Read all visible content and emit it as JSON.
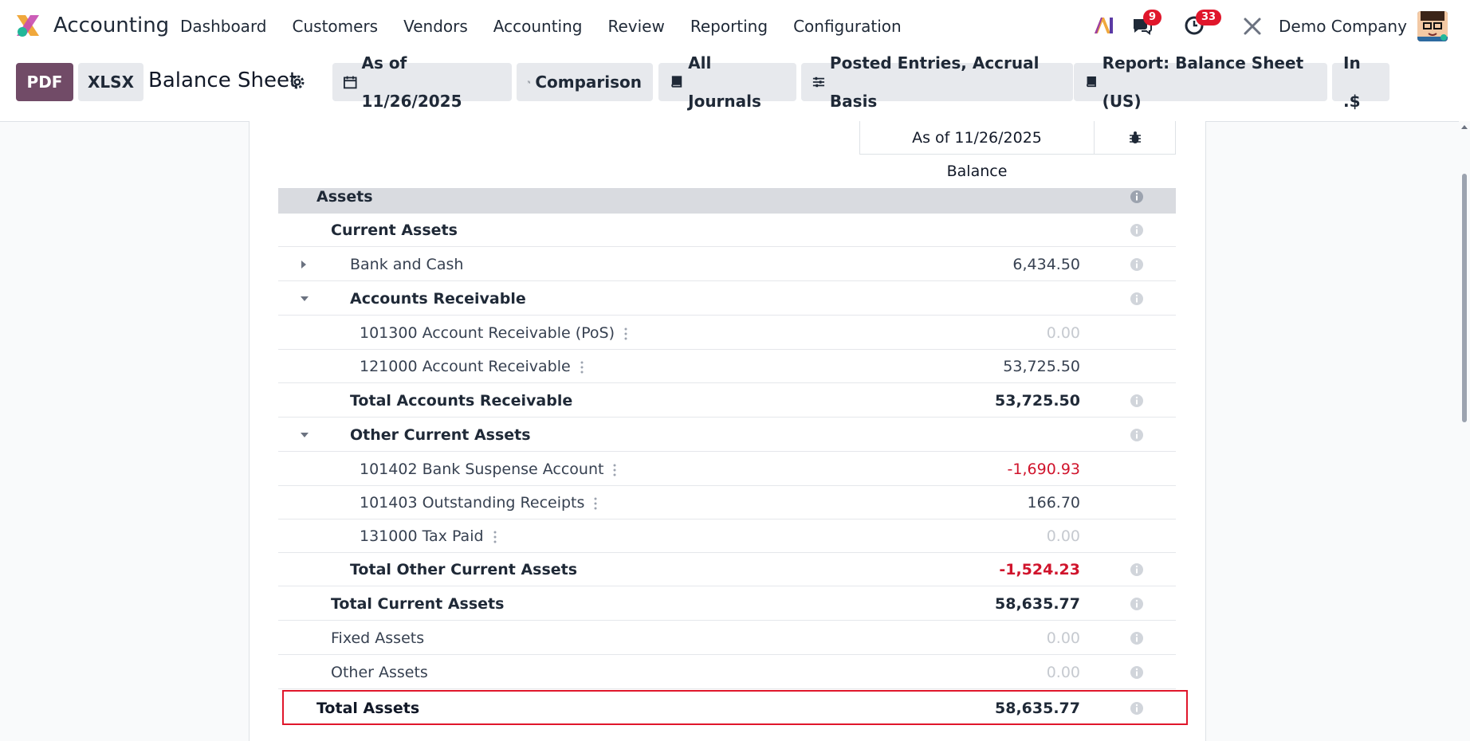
{
  "nav": {
    "app_title": "Accounting",
    "menu": [
      "Dashboard",
      "Customers",
      "Vendors",
      "Accounting",
      "Review",
      "Reporting",
      "Configuration"
    ],
    "messages_badge": "9",
    "activities_badge": "33",
    "company": "Demo Company"
  },
  "controls": {
    "pdf_label": "PDF",
    "xlsx_label": "XLSX",
    "page_title": "Balance Sheet",
    "filters": {
      "date": "As of 11/26/2025",
      "comparison": "Comparison",
      "journals": "All Journals",
      "entries": "Posted Entries, Accrual Basis",
      "report": "Report: Balance Sheet (US)",
      "currency": "In .$"
    }
  },
  "report": {
    "column_date": "As of 11/26/2025",
    "column_balance": "Balance",
    "rows": [
      {
        "label": "Assets",
        "amount": ""
      },
      {
        "label": "Current Assets",
        "amount": ""
      },
      {
        "label": "Bank and Cash",
        "amount": "6,434.50"
      },
      {
        "label": "Accounts Receivable",
        "amount": ""
      },
      {
        "label": "101300 Account Receivable (PoS)",
        "amount": "0.00"
      },
      {
        "label": "121000 Account Receivable",
        "amount": "53,725.50"
      },
      {
        "label": "Total Accounts Receivable",
        "amount": "53,725.50"
      },
      {
        "label": "Other Current Assets",
        "amount": ""
      },
      {
        "label": "101402 Bank Suspense Account",
        "amount": "-1,690.93"
      },
      {
        "label": "101403 Outstanding Receipts",
        "amount": "166.70"
      },
      {
        "label": "131000 Tax Paid",
        "amount": "0.00"
      },
      {
        "label": "Total Other Current Assets",
        "amount": "-1,524.23"
      },
      {
        "label": "Total Current Assets",
        "amount": "58,635.77"
      },
      {
        "label": "Fixed Assets",
        "amount": "0.00"
      },
      {
        "label": "Other Assets",
        "amount": "0.00"
      },
      {
        "label": "Total Assets",
        "amount": "58,635.77"
      }
    ]
  },
  "colors": {
    "brand": "#714b67",
    "negative": "#d0142c",
    "highlight_border": "#e0162b",
    "badge": "#e0162b"
  }
}
